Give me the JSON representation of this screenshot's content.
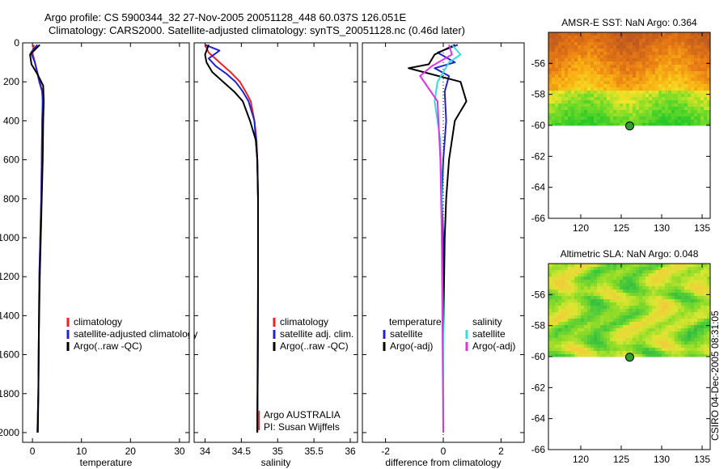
{
  "title": {
    "line1": "Argo profile: CS 5900344_32 27-Nov-2005 20051128_448 60.037S 126.051E",
    "line2": "Climatology: CARS2000. Satellite-adjusted climatology: synTS_20051128.nc (0.46d later)"
  },
  "colors": {
    "climatology": "#ee2222",
    "satellite": "#2222cc",
    "argo": "#000000",
    "sal_satellite": "#33dddd",
    "sal_argo": "#dd33dd"
  },
  "chart_data": [
    {
      "type": "line",
      "name": "temperature-panel",
      "xlabel": "temperature",
      "ylabel": "",
      "xlim": [
        -2,
        32
      ],
      "ylim": [
        2050,
        0
      ],
      "xticks": [
        "0",
        "10",
        "20",
        "30"
      ],
      "yticks": [
        "0",
        "200",
        "400",
        "600",
        "800",
        "1000",
        "1200",
        "1400",
        "1600",
        "1800",
        "2000"
      ],
      "legend": [
        "climatology",
        "satellite-adjusted climatology",
        "Argo(..raw -QC)"
      ],
      "series": [
        {
          "name": "climatology",
          "color_key": "climatology",
          "x": [
            0.3,
            0.0,
            0.5,
            1.5,
            2.0,
            2.1,
            2.0,
            1.9,
            1.8,
            1.6,
            1.4,
            1.3,
            1.2,
            1.0
          ],
          "y": [
            10,
            50,
            100,
            200,
            250,
            300,
            400,
            600,
            800,
            1000,
            1200,
            1500,
            1800,
            2000
          ]
        },
        {
          "name": "satellite",
          "color_key": "satellite",
          "x": [
            1.0,
            -0.3,
            0.5,
            1.4,
            2.0,
            2.1,
            2.0,
            1.9,
            1.8,
            1.6,
            1.4,
            1.3,
            1.2,
            1.0
          ],
          "y": [
            10,
            50,
            100,
            200,
            250,
            300,
            400,
            600,
            800,
            1000,
            1200,
            1500,
            1800,
            2000
          ]
        },
        {
          "name": "argo",
          "color_key": "argo",
          "x": [
            1.5,
            -0.5,
            -0.2,
            1.0,
            2.2,
            2.3,
            2.2,
            2.1,
            1.9,
            1.7,
            1.5,
            1.3,
            1.2,
            1.1
          ],
          "y": [
            10,
            60,
            110,
            160,
            220,
            300,
            400,
            600,
            800,
            1000,
            1200,
            1500,
            1800,
            2000
          ]
        }
      ]
    },
    {
      "type": "line",
      "name": "salinity-panel",
      "xlabel": "salinity",
      "xlim": [
        33.85,
        36.1
      ],
      "ylim": [
        2050,
        0
      ],
      "xticks": [
        "34",
        "34.5",
        "35",
        "35.5",
        "36"
      ],
      "legend": [
        "climatology",
        "satellite adj. clim.",
        "Argo(..raw -QC)"
      ],
      "annotation": [
        "Argo AUSTRALIA",
        "PI: Susan Wijffels"
      ],
      "series": [
        {
          "name": "climatology",
          "color_key": "climatology",
          "x": [
            34.0,
            34.05,
            34.2,
            34.35,
            34.48,
            34.56,
            34.63,
            34.68,
            34.71,
            34.72,
            34.73,
            34.73,
            34.73,
            34.72
          ],
          "y": [
            10,
            50,
            100,
            150,
            200,
            250,
            300,
            400,
            500,
            600,
            800,
            1100,
            1500,
            2000
          ]
        },
        {
          "name": "satellite",
          "color_key": "satellite",
          "x": [
            34.0,
            34.2,
            34.05,
            34.15,
            34.3,
            34.42,
            34.52,
            34.6,
            34.68,
            34.72,
            34.73,
            34.73,
            34.73,
            34.72
          ],
          "y": [
            10,
            40,
            80,
            120,
            160,
            200,
            250,
            300,
            400,
            600,
            800,
            1100,
            1500,
            2000
          ]
        },
        {
          "name": "argo",
          "color_key": "argo",
          "x": [
            34.05,
            34.0,
            34.02,
            34.1,
            34.25,
            34.4,
            34.52,
            34.62,
            34.7,
            34.72,
            34.73,
            34.73,
            34.72
          ],
          "y": [
            10,
            60,
            100,
            150,
            200,
            250,
            300,
            400,
            500,
            600,
            800,
            1200,
            2000
          ]
        }
      ]
    },
    {
      "type": "line",
      "name": "difference-panel",
      "xlabel": "difference from climatology",
      "xlim": [
        -2.8,
        2.8
      ],
      "ylim": [
        2050,
        0
      ],
      "xticks": [
        "-2",
        "0",
        "2"
      ],
      "legend_left_title": "temperature",
      "legend_right_title": "salinity",
      "legend": [
        "satellite",
        "Argo(-adj)",
        "satellite",
        "Argo(-adj)"
      ],
      "series": [
        {
          "name": "temp-satellite",
          "color_key": "satellite",
          "x": [
            0.5,
            -0.2,
            0.4,
            -0.3,
            0.2,
            0.05,
            0.1,
            0.0,
            -0.05,
            0.0,
            0.0,
            0.0
          ],
          "y": [
            10,
            50,
            100,
            130,
            170,
            250,
            400,
            600,
            800,
            1000,
            1500,
            2000
          ]
        },
        {
          "name": "temp-argo",
          "color_key": "argo",
          "x": [
            0.4,
            -0.3,
            -0.5,
            -1.2,
            0.6,
            0.8,
            0.4,
            0.2,
            0.1,
            0.05,
            0.0,
            0.0
          ],
          "y": [
            10,
            60,
            110,
            130,
            200,
            300,
            400,
            600,
            800,
            1000,
            1500,
            2000
          ]
        },
        {
          "name": "sal-satellite",
          "color_key": "sal_satellite",
          "x": [
            0.3,
            0.6,
            0.2,
            -0.2,
            -0.3,
            -0.1,
            -0.05,
            -0.05,
            0.0,
            0.0
          ],
          "y": [
            10,
            60,
            100,
            200,
            300,
            500,
            800,
            1000,
            1500,
            2000
          ]
        },
        {
          "name": "sal-argo",
          "color_key": "sal_argo",
          "x": [
            0.2,
            0.3,
            -0.4,
            -0.8,
            -0.2,
            -0.1,
            -0.05,
            0.0
          ],
          "y": [
            10,
            60,
            120,
            170,
            300,
            600,
            1000,
            2000
          ]
        }
      ]
    },
    {
      "type": "heatmap",
      "name": "sst-map",
      "title": "AMSR-E SST: NaN Argo: 0.364",
      "xlim": [
        116,
        136
      ],
      "ylim": [
        -66,
        -54
      ],
      "xticks": [
        "120",
        "125",
        "130",
        "135"
      ],
      "yticks": [
        "-56",
        "-58",
        "-60",
        "-62",
        "-64",
        "-66"
      ],
      "data_south_limit": -60,
      "marker": {
        "lon": 126.05,
        "lat": -60.04
      },
      "palette": "sst"
    },
    {
      "type": "heatmap",
      "name": "sla-map",
      "title": "Altimetric SLA: NaN Argo: 0.048",
      "xlim": [
        116,
        136
      ],
      "ylim": [
        -66,
        -54
      ],
      "xticks": [
        "120",
        "125",
        "130",
        "135"
      ],
      "yticks": [
        "-56",
        "-58",
        "-60",
        "-62",
        "-64",
        "-66"
      ],
      "data_south_limit": -60,
      "marker": {
        "lon": 126.05,
        "lat": -60.04
      },
      "palette": "sla"
    }
  ],
  "credit": "CSIRO 04-Dec-2005 08:31:05"
}
